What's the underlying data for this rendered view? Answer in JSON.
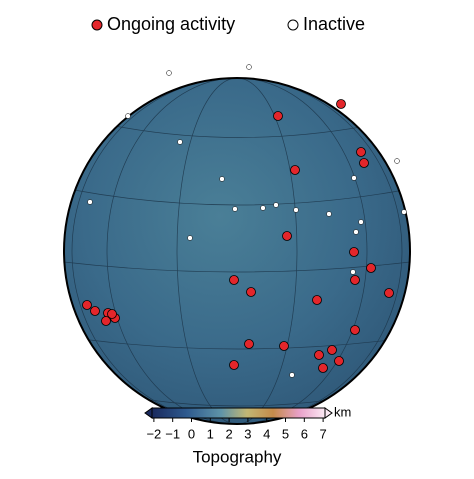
{
  "legend": [
    {
      "label": "Ongoing activity",
      "color": "#e3262b"
    },
    {
      "label": "Inactive",
      "color": "#ffffff"
    }
  ],
  "colorbar": {
    "label": "Topography",
    "unit": "km",
    "lim": [
      -2.1,
      7.1
    ],
    "ticks": [
      {
        "value": -2,
        "label": "−2"
      },
      {
        "value": -1,
        "label": "−1"
      },
      0,
      1,
      2,
      3,
      4,
      5,
      6,
      7
    ]
  }
}
